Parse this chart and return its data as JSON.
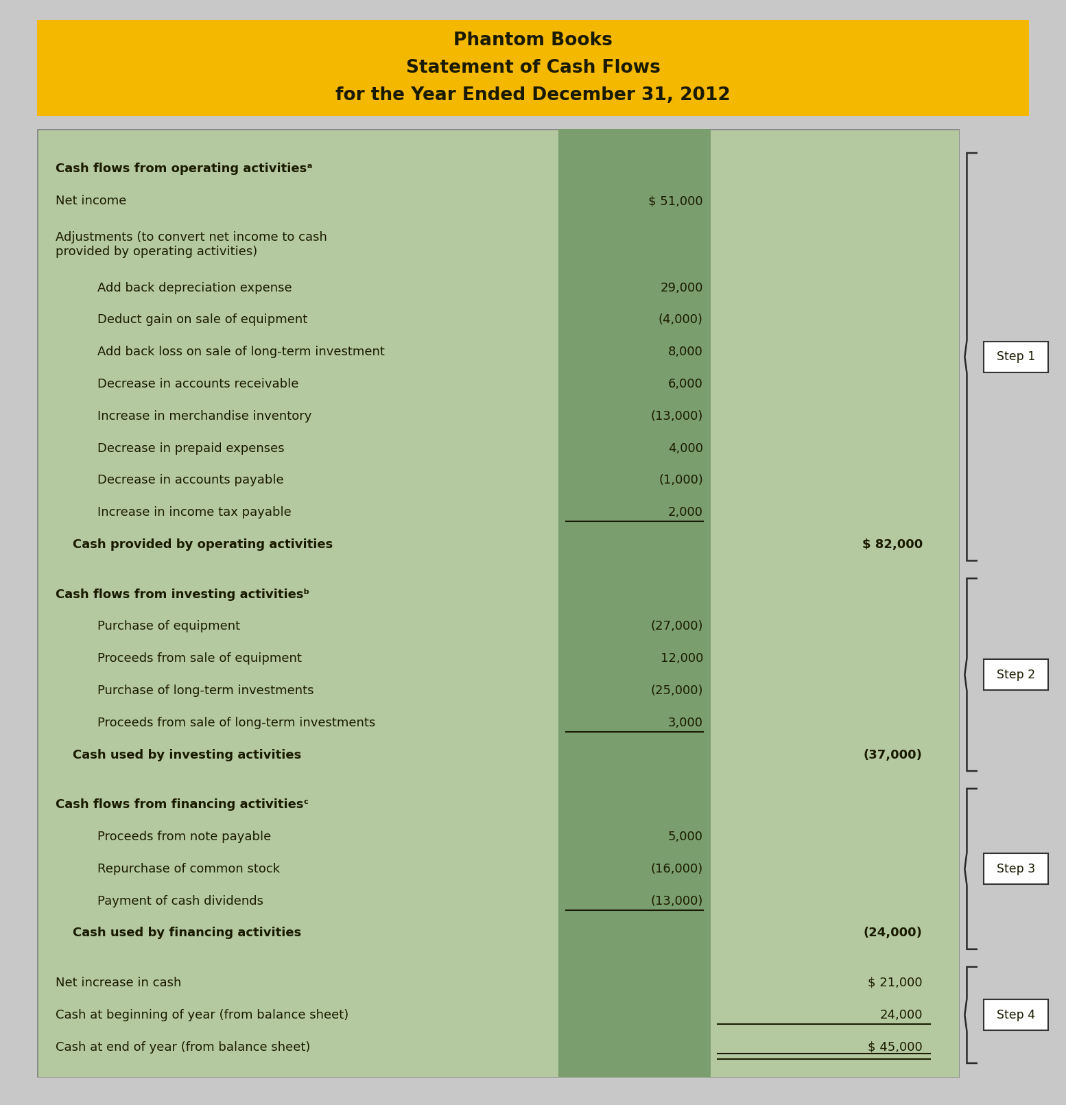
{
  "title_lines": [
    "Phantom Books",
    "Statement of Cash Flows",
    "for the Year Ended December 31, 2012"
  ],
  "title_bg": "#F5B800",
  "title_text_color": "#1a1a00",
  "table_bg_light": "#b5c9a0",
  "table_bg_mid": "#7a9e6e",
  "table_text_color": "#1a1a00",
  "fig_bg": "#c8c8c8",
  "rows": [
    {
      "label": "Cash flows from operating activitiesᵃ",
      "col1": "",
      "col2": "",
      "bold": true,
      "indent": 0
    },
    {
      "label": "Net income",
      "col1": "$ 51,000",
      "col2": "",
      "bold": false,
      "indent": 0
    },
    {
      "label": "Adjustments (to convert net income to cash\nprovided by operating activities)",
      "col1": "",
      "col2": "",
      "bold": false,
      "indent": 0,
      "multiline": true
    },
    {
      "label": "Add back depreciation expense",
      "col1": "29,000",
      "col2": "",
      "bold": false,
      "indent": 1
    },
    {
      "label": "Deduct gain on sale of equipment",
      "col1": "(4,000)",
      "col2": "",
      "bold": false,
      "indent": 1
    },
    {
      "label": "Add back loss on sale of long-term investment",
      "col1": "8,000",
      "col2": "",
      "bold": false,
      "indent": 1
    },
    {
      "label": "Decrease in accounts receivable",
      "col1": "6,000",
      "col2": "",
      "bold": false,
      "indent": 1
    },
    {
      "label": "Increase in merchandise inventory",
      "col1": "(13,000)",
      "col2": "",
      "bold": false,
      "indent": 1
    },
    {
      "label": "Decrease in prepaid expenses",
      "col1": "4,000",
      "col2": "",
      "bold": false,
      "indent": 1
    },
    {
      "label": "Decrease in accounts payable",
      "col1": "(1,000)",
      "col2": "",
      "bold": false,
      "indent": 1
    },
    {
      "label": "Increase in income tax payable",
      "col1": "2,000",
      "col2": "",
      "bold": false,
      "underline_col1": true,
      "indent": 1
    },
    {
      "label": "    Cash provided by operating activities",
      "col1": "",
      "col2": "$ 82,000",
      "bold": true,
      "indent": 0
    },
    {
      "label": "",
      "col1": "",
      "col2": "",
      "bold": false,
      "indent": 0,
      "spacer": true
    },
    {
      "label": "Cash flows from investing activitiesᵇ",
      "col1": "",
      "col2": "",
      "bold": true,
      "indent": 0
    },
    {
      "label": "Purchase of equipment",
      "col1": "(27,000)",
      "col2": "",
      "bold": false,
      "indent": 1
    },
    {
      "label": "Proceeds from sale of equipment",
      "col1": "12,000",
      "col2": "",
      "bold": false,
      "indent": 1
    },
    {
      "label": "Purchase of long-term investments",
      "col1": "(25,000)",
      "col2": "",
      "bold": false,
      "indent": 1
    },
    {
      "label": "Proceeds from sale of long-term investments",
      "col1": "3,000",
      "col2": "",
      "bold": false,
      "underline_col1": true,
      "indent": 1
    },
    {
      "label": "    Cash used by investing activities",
      "col1": "",
      "col2": "(37,000)",
      "bold": true,
      "indent": 0
    },
    {
      "label": "",
      "col1": "",
      "col2": "",
      "bold": false,
      "indent": 0,
      "spacer": true
    },
    {
      "label": "Cash flows from financing activitiesᶜ",
      "col1": "",
      "col2": "",
      "bold": true,
      "indent": 0
    },
    {
      "label": "Proceeds from note payable",
      "col1": "5,000",
      "col2": "",
      "bold": false,
      "indent": 1
    },
    {
      "label": "Repurchase of common stock",
      "col1": "(16,000)",
      "col2": "",
      "bold": false,
      "indent": 1
    },
    {
      "label": "Payment of cash dividends",
      "col1": "(13,000)",
      "col2": "",
      "bold": false,
      "underline_col1": true,
      "indent": 1
    },
    {
      "label": "    Cash used by financing activities",
      "col1": "",
      "col2": "(24,000)",
      "bold": true,
      "indent": 0
    },
    {
      "label": "",
      "col1": "",
      "col2": "",
      "bold": false,
      "indent": 0,
      "spacer": true
    },
    {
      "label": "Net increase in cash",
      "col1": "",
      "col2": "$ 21,000",
      "bold": false,
      "indent": 0
    },
    {
      "label": "Cash at beginning of year (from balance sheet)",
      "col1": "",
      "col2": "24,000",
      "bold": false,
      "underline_col2": true,
      "indent": 0
    },
    {
      "label": "Cash at end of year (from balance sheet)",
      "col1": "",
      "col2": "$ 45,000",
      "bold": false,
      "double_underline_col2": true,
      "indent": 0
    }
  ],
  "step_info": [
    {
      "r_start": 0,
      "r_end": 11,
      "label": "Step 1"
    },
    {
      "r_start": 13,
      "r_end": 18,
      "label": "Step 2"
    },
    {
      "r_start": 20,
      "r_end": 24,
      "label": "Step 3"
    },
    {
      "r_start": 26,
      "r_end": 28,
      "label": "Step 4"
    }
  ]
}
